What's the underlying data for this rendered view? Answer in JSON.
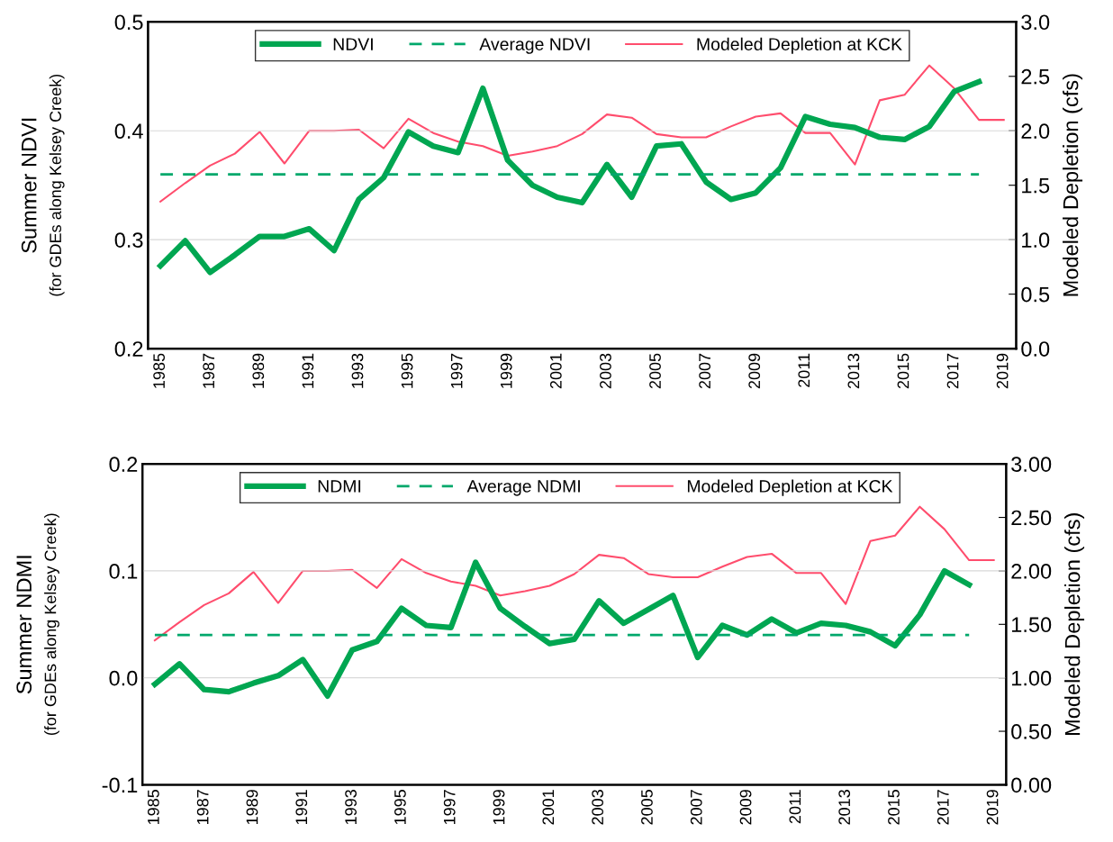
{
  "chart_data": [
    {
      "type": "line",
      "xlabel": null,
      "ylabel": "Summer NDVI\n(for GDEs along Kelsey Creek)",
      "y2label": "Modeled Depletion (cfs)",
      "categories": [
        "1985",
        null,
        "1987",
        null,
        "1989",
        null,
        "1991",
        null,
        "1993",
        null,
        "1995",
        null,
        "1997",
        null,
        "1999",
        null,
        "2001",
        null,
        "2003",
        null,
        "2005",
        null,
        "2007",
        null,
        "2009",
        null,
        "2011",
        null,
        "2013",
        null,
        "2015",
        null,
        "2017",
        null,
        "2019"
      ],
      "series": [
        {
          "name": "NDVI",
          "color": "#00a651",
          "values": [
            0.276,
            0.299,
            0.27,
            0.286,
            0.303,
            0.303,
            0.31,
            0.29,
            0.337,
            0.357,
            0.399,
            0.386,
            0.38,
            0.439,
            0.373,
            0.35,
            0.339,
            0.334,
            0.369,
            0.339,
            0.386,
            0.388,
            0.353,
            0.337,
            0.343,
            0.366,
            0.413,
            0.406,
            0.403,
            0.394,
            0.392,
            0.404,
            0.436,
            0.445,
            null
          ]
        },
        {
          "name": "Average NDVI",
          "color": "#00a86b",
          "line_style": "dashed",
          "values": [
            0.36,
            0.36,
            0.36,
            0.36,
            0.36,
            0.36,
            0.36,
            0.36,
            0.36,
            0.36,
            0.36,
            0.36,
            0.36,
            0.36,
            0.36,
            0.36,
            0.36,
            0.36,
            0.36,
            0.36,
            0.36,
            0.36,
            0.36,
            0.36,
            0.36,
            0.36,
            0.36,
            0.36,
            0.36,
            0.36,
            0.36,
            0.36,
            0.36,
            0.36,
            null
          ]
        },
        {
          "name": "Modeled Depletion at KCK",
          "color": "#ff4d6d",
          "axis": "y2",
          "values": [
            1.35,
            1.52,
            1.68,
            1.79,
            1.99,
            1.7,
            2.0,
            2.0,
            2.01,
            1.84,
            2.11,
            1.98,
            1.9,
            1.86,
            1.77,
            1.81,
            1.86,
            1.97,
            2.15,
            2.12,
            1.97,
            1.94,
            1.94,
            2.04,
            2.13,
            2.16,
            1.98,
            1.98,
            1.69,
            2.28,
            2.33,
            2.6,
            2.39,
            2.1,
            2.1
          ]
        }
      ],
      "ylim": [
        0.2,
        0.5
      ],
      "yticks": [
        0.2,
        0.3,
        0.4,
        0.5
      ],
      "y2lim": [
        0.0,
        3.0
      ],
      "y2ticks": [
        {
          "value": 0,
          "label": "0.0"
        },
        0.5,
        {
          "value": 1,
          "label": "1.0"
        },
        1.5,
        {
          "value": 2,
          "label": "2.0"
        },
        2.5,
        {
          "value": 3,
          "label": "3.0"
        }
      ],
      "grid": true,
      "legend": "top right",
      "marker": "none",
      "line_style": "solid"
    },
    {
      "type": "line",
      "ylabel": "Summer NDMI\n(for GDEs along Kelsey Creek)",
      "y2label": "Modeled Depletion (cfs)",
      "categories": [
        "1985",
        null,
        "1987",
        null,
        "1989",
        null,
        "1991",
        null,
        "1993",
        null,
        "1995",
        null,
        "1997",
        null,
        "1999",
        null,
        "2001",
        null,
        "2003",
        null,
        "2005",
        null,
        "2007",
        null,
        "2009",
        null,
        "2011",
        null,
        "2013",
        null,
        "2015",
        null,
        "2017",
        null,
        "2019"
      ],
      "series": [
        {
          "name": "NDMI",
          "color": "#00a651",
          "values": [
            -0.006,
            0.013,
            -0.011,
            -0.013,
            -0.005,
            0.002,
            0.017,
            -0.017,
            0.026,
            0.034,
            0.065,
            0.049,
            0.047,
            0.108,
            0.065,
            0.048,
            0.032,
            0.036,
            0.072,
            0.051,
            0.064,
            0.077,
            0.019,
            0.049,
            0.04,
            0.055,
            0.042,
            0.051,
            0.049,
            0.043,
            0.03,
            0.059,
            0.1,
            0.087,
            null
          ]
        },
        {
          "name": "Average NDMI",
          "color": "#00a86b",
          "line_style": "dashed",
          "values": [
            0.04,
            0.04,
            0.04,
            0.04,
            0.04,
            0.04,
            0.04,
            0.04,
            0.04,
            0.04,
            0.04,
            0.04,
            0.04,
            0.04,
            0.04,
            0.04,
            0.04,
            0.04,
            0.04,
            0.04,
            0.04,
            0.04,
            0.04,
            0.04,
            0.04,
            0.04,
            0.04,
            0.04,
            0.04,
            0.04,
            0.04,
            0.04,
            0.04,
            0.04,
            null
          ]
        },
        {
          "name": "Modeled Depletion at KCK",
          "color": "#ff4d6d",
          "axis": "y2",
          "values": [
            1.35,
            1.52,
            1.68,
            1.79,
            1.99,
            1.7,
            2.0,
            2.0,
            2.01,
            1.84,
            2.11,
            1.98,
            1.9,
            1.86,
            1.77,
            1.81,
            1.86,
            1.97,
            2.15,
            2.12,
            1.97,
            1.94,
            1.94,
            2.04,
            2.13,
            2.16,
            1.98,
            1.98,
            1.69,
            2.28,
            2.33,
            2.6,
            2.39,
            2.1,
            2.1
          ]
        }
      ],
      "ylim": [
        -0.1,
        0.2
      ],
      "yticks": [
        -0.1,
        {
          "value": 0,
          "label": "0.0"
        },
        0.1,
        0.2
      ],
      "y2lim": [
        0.0,
        3.0
      ],
      "y2ticks": [
        {
          "value": 0,
          "label": "0.00"
        },
        {
          "value": 0.5,
          "label": "0.50"
        },
        {
          "value": 1,
          "label": "1.00"
        },
        {
          "value": 1.5,
          "label": "1.50"
        },
        {
          "value": 2,
          "label": "2.00"
        },
        {
          "value": 2.5,
          "label": "2.50"
        },
        {
          "value": 3,
          "label": "3.00"
        }
      ],
      "grid": true,
      "legend": "top right",
      "marker": "none",
      "line_style": "solid"
    }
  ]
}
